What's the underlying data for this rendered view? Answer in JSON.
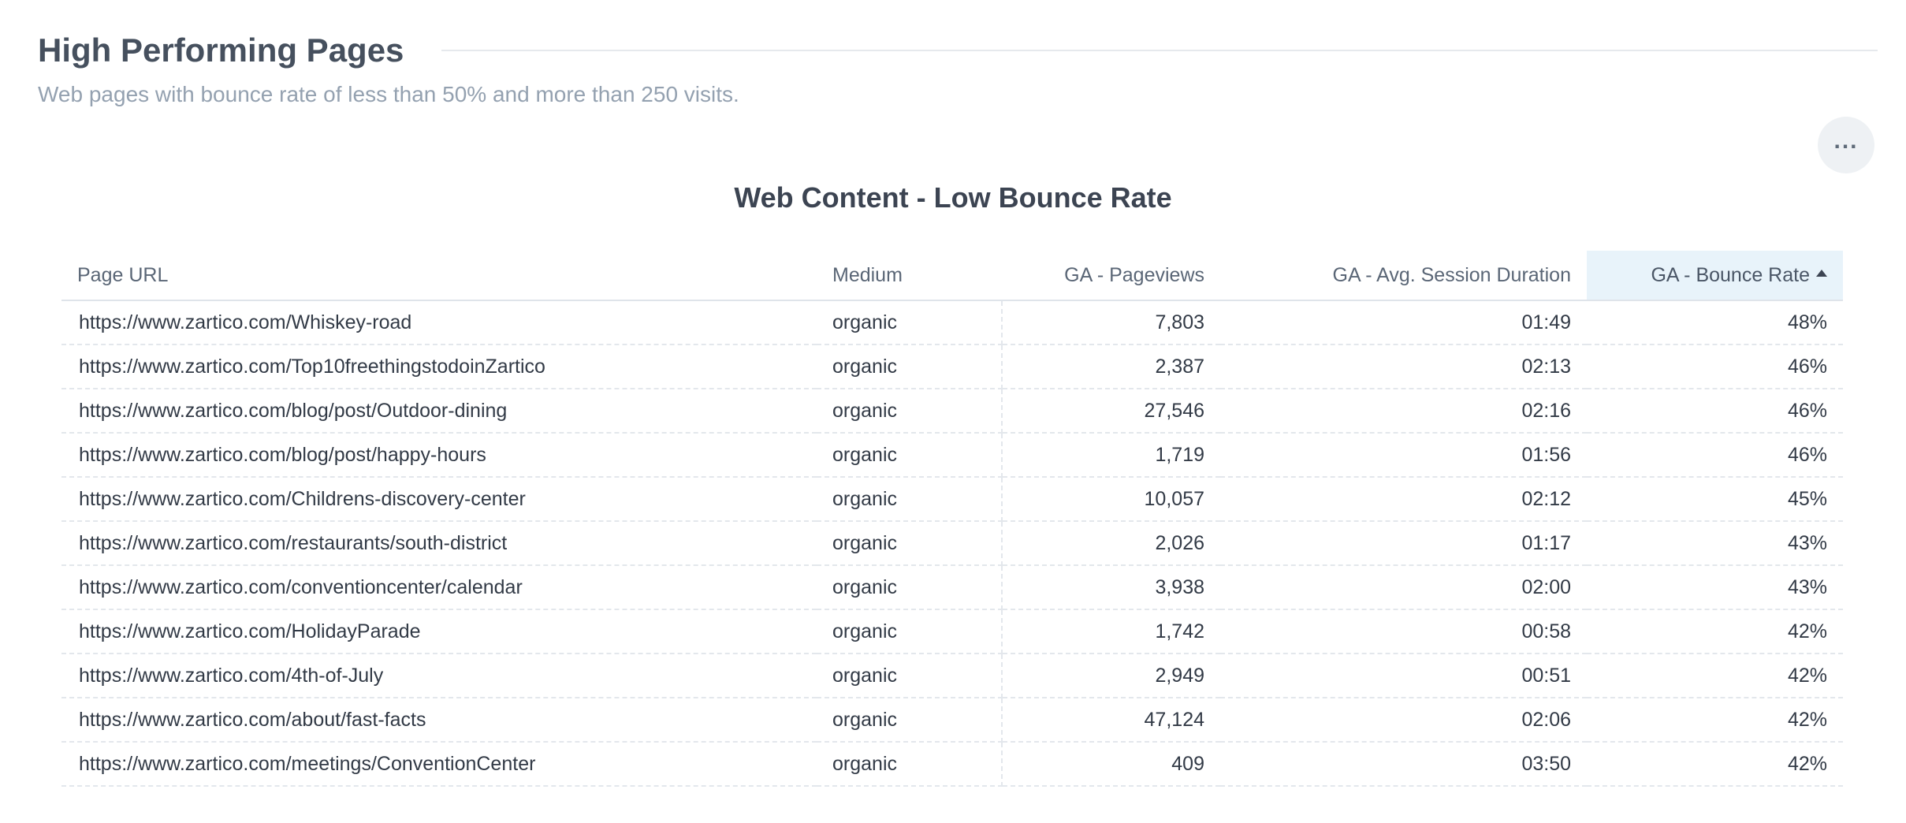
{
  "section": {
    "title": "High Performing Pages",
    "description": "Web pages with bounce rate of less than 50% and more than 250 visits.",
    "menu_label": "..."
  },
  "widget": {
    "title": "Web Content - Low Bounce Rate"
  },
  "table": {
    "columns": [
      {
        "key": "url",
        "label": "Page URL"
      },
      {
        "key": "medium",
        "label": "Medium"
      },
      {
        "key": "pageviews",
        "label": "GA - Pageviews"
      },
      {
        "key": "duration",
        "label": "GA - Avg. Session Duration"
      },
      {
        "key": "bounce",
        "label": "GA - Bounce Rate",
        "sorted": "ascending"
      }
    ],
    "rows": [
      {
        "url": "https://www.zartico.com/Whiskey-road",
        "medium": "organic",
        "pageviews": "7,803",
        "duration": "01:49",
        "bounce": "48%"
      },
      {
        "url": "https://www.zartico.com/Top10freethingstodoinZartico",
        "medium": "organic",
        "pageviews": "2,387",
        "duration": "02:13",
        "bounce": "46%"
      },
      {
        "url": "https://www.zartico.com/blog/post/Outdoor-dining",
        "medium": "organic",
        "pageviews": "27,546",
        "duration": "02:16",
        "bounce": "46%"
      },
      {
        "url": "https://www.zartico.com/blog/post/happy-hours",
        "medium": "organic",
        "pageviews": "1,719",
        "duration": "01:56",
        "bounce": "46%"
      },
      {
        "url": "https://www.zartico.com/Childrens-discovery-center",
        "medium": "organic",
        "pageviews": "10,057",
        "duration": "02:12",
        "bounce": "45%"
      },
      {
        "url": "https://www.zartico.com/restaurants/south-district",
        "medium": "organic",
        "pageviews": "2,026",
        "duration": "01:17",
        "bounce": "43%"
      },
      {
        "url": "https://www.zartico.com/conventioncenter/calendar",
        "medium": "organic",
        "pageviews": "3,938",
        "duration": "02:00",
        "bounce": "43%"
      },
      {
        "url": "https://www.zartico.com/HolidayParade",
        "medium": "organic",
        "pageviews": "1,742",
        "duration": "00:58",
        "bounce": "42%"
      },
      {
        "url": "https://www.zartico.com/4th-of-July",
        "medium": "organic",
        "pageviews": "2,949",
        "duration": "00:51",
        "bounce": "42%"
      },
      {
        "url": "https://www.zartico.com/about/fast-facts",
        "medium": "organic",
        "pageviews": "47,124",
        "duration": "02:06",
        "bounce": "42%"
      },
      {
        "url": "https://www.zartico.com/meetings/ConventionCenter",
        "medium": "organic",
        "pageviews": "409",
        "duration": "03:50",
        "bounce": "42%"
      }
    ]
  },
  "colors": {
    "sorted_header_bg": "#e8f3fa",
    "title_text": "#46505e",
    "description_text": "#94a1b0"
  },
  "icons": {
    "menu": "more-horizontal-icon",
    "sort": "sort-ascending-icon"
  }
}
